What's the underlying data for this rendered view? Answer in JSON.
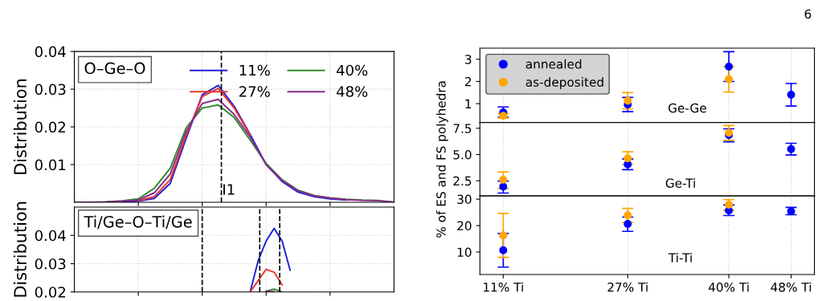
{
  "chart_data": [
    {
      "type": "line",
      "ylabel": "Distribution",
      "annotations": [
        "O–Ge–O",
        "I1"
      ],
      "marker": "none",
      "line_style": "solid",
      "legend": "top right",
      "grid": true,
      "tick_labels": "y",
      "categories": [
        null,
        null,
        null,
        null,
        null,
        null,
        null,
        null,
        null,
        null,
        null,
        null,
        null,
        null,
        null,
        null,
        null,
        null,
        null,
        null,
        null
      ],
      "ylim": [
        0,
        0.04
      ],
      "yticks": [
        0.01,
        0.02,
        0.03,
        0.04
      ],
      "series": [
        {
          "name": "11%",
          "color": "#1f1fd6",
          "values": [
            null,
            null,
            null,
            0.0001,
            0.0003,
            0.001,
            0.005,
            0.017,
            0.0285,
            0.031,
            0.0255,
            0.018,
            0.01,
            0.0055,
            0.0027,
            0.0015,
            0.0009,
            0.0006,
            null,
            null,
            null
          ]
        },
        {
          "name": "27%",
          "color": "#e8352e",
          "values": [
            null,
            null,
            null,
            null,
            0.0004,
            0.0015,
            0.006,
            0.0178,
            0.028,
            0.0302,
            0.025,
            0.0178,
            null,
            null,
            null,
            null,
            null,
            null,
            null,
            null,
            null
          ]
        },
        {
          "name": "40%",
          "color": "#2e8b2e",
          "values": [
            null,
            null,
            0.0001,
            0.0004,
            0.0009,
            0.0037,
            0.009,
            0.0198,
            0.025,
            0.0258,
            0.0225,
            0.0165,
            0.0103,
            0.006,
            0.0032,
            0.0018,
            0.0012,
            0.0008,
            0.0006,
            0.0005,
            0
          ]
        },
        {
          "name": "48%",
          "color": "#8b2a8b",
          "values": [
            0,
            0,
            0.0001,
            0.0003,
            0.0006,
            0.0025,
            0.0075,
            0.0188,
            0.0262,
            0.0273,
            0.0233,
            0.0173,
            0.01,
            0.0058,
            0.003,
            0.0017,
            0.0011,
            0.0007,
            0.0005,
            0.0004,
            0
          ]
        }
      ]
    },
    {
      "type": "line",
      "ylabel": "Distribution",
      "annotations": [
        "Ti/Ge–O–Ti/Ge"
      ],
      "marker": "none",
      "line_style": "solid",
      "grid": true,
      "tick_labels": "y",
      "categories": [
        null,
        null,
        null,
        null,
        null,
        null,
        null,
        null,
        null,
        null,
        null,
        null,
        null,
        null,
        null,
        null,
        null,
        null,
        null,
        null,
        null,
        null,
        null,
        null,
        null,
        null,
        null,
        null,
        null,
        null,
        null,
        null,
        null,
        null,
        null,
        null,
        null,
        null,
        null,
        null,
        null
      ],
      "ylim": [
        0.02,
        0.05
      ],
      "yticks": [
        0.02,
        0.03,
        0.04
      ],
      "series": [
        {
          "color": "#1f1fd6",
          "values": [
            null,
            null,
            null,
            null,
            null,
            null,
            null,
            null,
            null,
            null,
            null,
            null,
            null,
            null,
            null,
            null,
            null,
            null,
            null,
            null,
            null,
            null,
            0.02,
            0.031,
            0.038,
            0.0425,
            0.038,
            0.0277,
            null,
            null,
            null,
            null,
            null,
            null,
            null,
            null,
            null,
            null,
            null,
            null,
            null
          ]
        },
        {
          "color": "#e8352e",
          "values": [
            null,
            null,
            null,
            null,
            null,
            null,
            null,
            null,
            null,
            null,
            null,
            null,
            null,
            null,
            null,
            null,
            null,
            null,
            null,
            null,
            null,
            null,
            0.02,
            0.024,
            0.028,
            0.027,
            0.0225,
            null,
            null,
            null,
            null,
            null,
            null,
            null,
            null,
            null,
            null,
            null,
            null,
            null,
            null
          ]
        },
        {
          "color": "#2e8b2e",
          "values": [
            null,
            null,
            null,
            null,
            null,
            null,
            null,
            null,
            null,
            null,
            null,
            null,
            null,
            null,
            null,
            null,
            null,
            null,
            null,
            null,
            null,
            null,
            null,
            null,
            0.0203,
            0.021,
            0.02,
            null,
            null,
            null,
            null,
            null,
            null,
            null,
            null,
            null,
            null,
            null,
            null,
            null,
            null
          ]
        },
        {
          "color": "#8b2a8b",
          "values": [
            null,
            null,
            null,
            null,
            null,
            null,
            null,
            null,
            null,
            null,
            null,
            null,
            null,
            null,
            null,
            null,
            null,
            null,
            null,
            null,
            null,
            null,
            null,
            null,
            0.0202,
            0.0201,
            null,
            null,
            null,
            null,
            null,
            null,
            null,
            null,
            null,
            null,
            null,
            null,
            null,
            null,
            null
          ]
        }
      ]
    },
    {
      "type": "scatter",
      "annotations": [
        "Ge-Ge",
        "6"
      ],
      "marker": "circle",
      "legend": "top left",
      "grid": "x",
      "tick_labels": "y",
      "xlim": [
        8,
        51
      ],
      "xticks": [
        11,
        27,
        40,
        48
      ],
      "ylim": [
        0.15,
        3.5
      ],
      "yticks": [
        1,
        2,
        3
      ],
      "series": [
        {
          "name": "annealed",
          "color": "#0000ff",
          "x": [
            11,
            27,
            40,
            48
          ],
          "values": [
            0.61,
            0.96,
            2.67,
            1.4
          ],
          "errors": [
            [
              0.39,
              0.85
            ],
            [
              0.64,
              1.28
            ],
            [
              2.0,
              3.34
            ],
            [
              0.89,
              1.91
            ]
          ]
        },
        {
          "name": "as-deposited",
          "color": "#ffa500",
          "x": [
            11,
            27,
            40
          ],
          "values": [
            0.45,
            1.13,
            2.1
          ],
          "errors": [
            [
              0.35,
              0.55
            ],
            [
              0.76,
              1.5
            ],
            [
              1.52,
              2.67
            ]
          ]
        }
      ]
    },
    {
      "type": "scatter",
      "ylabel": "% of ES and FS polyhedra",
      "annotations": [
        "Ge-Ti"
      ],
      "marker": "circle",
      "grid": "x",
      "tick_labels": "y",
      "xlim": [
        8,
        51
      ],
      "xticks": [
        11,
        27,
        40,
        48
      ],
      "ylim": [
        1.05,
        8.05
      ],
      "yticks": [
        {
          "value": 2.5,
          "label": "2.5"
        },
        {
          "value": 5,
          "label": "5.0"
        },
        {
          "value": 7.5,
          "label": "7.5"
        }
      ],
      "series": [
        {
          "color": "#0000ff",
          "x": [
            11,
            27,
            40,
            48
          ],
          "values": [
            1.94,
            4.06,
            6.86,
            5.51
          ],
          "errors": [
            [
              1.33,
              2.47
            ],
            [
              3.55,
              4.57
            ],
            [
              6.22,
              7.45
            ],
            [
              4.95,
              6.07
            ]
          ]
        },
        {
          "color": "#ffa500",
          "x": [
            11,
            27,
            40
          ],
          "values": [
            2.6,
            4.64,
            7.07
          ],
          "errors": [
            [
              1.76,
              3.34
            ],
            [
              4.06,
              5.26
            ],
            [
              6.35,
              7.76
            ]
          ]
        }
      ]
    },
    {
      "type": "scatter",
      "annotations": [
        "Ti-Ti"
      ],
      "marker": "circle",
      "grid": "x",
      "xlim": [
        8,
        51
      ],
      "xticks": [
        {
          "value": 11,
          "label": "11% Ti"
        },
        {
          "value": 27,
          "label": "27% Ti"
        },
        {
          "value": 40,
          "label": "40% Ti"
        },
        {
          "value": 48,
          "label": "48% Ti"
        }
      ],
      "ylim": [
        1.5,
        31.2
      ],
      "yticks": [
        10,
        20,
        30
      ],
      "series": [
        {
          "color": "#0000ff",
          "x": [
            11,
            27,
            40,
            48
          ],
          "values": [
            10.7,
            20.6,
            25.7,
            25.4
          ],
          "errors": [
            [
              4.3,
              17.0
            ],
            [
              17.8,
              23.2
            ],
            [
              23.8,
              27.8
            ],
            [
              24.1,
              26.9
            ]
          ]
        },
        {
          "color": "#ffa500",
          "x": [
            11,
            27,
            40
          ],
          "values": [
            16.3,
            23.9,
            27.9
          ],
          "errors": [
            [
              8.0,
              24.6
            ],
            [
              21.2,
              26.5
            ],
            [
              25.8,
              29.8
            ]
          ]
        }
      ]
    }
  ]
}
